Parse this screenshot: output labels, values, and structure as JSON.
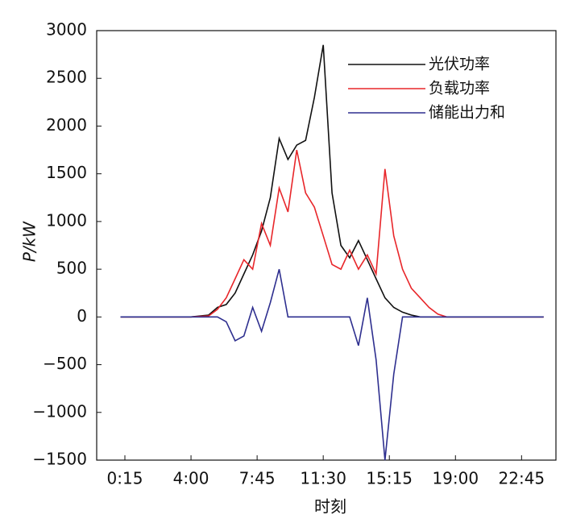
{
  "chart_data": {
    "type": "line",
    "x_label": "时刻",
    "y_label": "P/kW",
    "x": [
      0,
      1,
      2,
      3,
      4,
      5,
      5.5,
      6,
      6.5,
      7,
      7.5,
      8,
      8.5,
      9,
      9.5,
      10,
      10.5,
      11,
      11.5,
      12,
      12.5,
      13,
      13.5,
      14,
      14.5,
      15,
      15.5,
      16,
      16.5,
      17,
      17.5,
      18,
      18.5,
      19,
      20,
      21,
      22,
      23,
      24
    ],
    "series": [
      {
        "name": "光伏功率",
        "color": "#111111",
        "values": [
          0,
          0,
          0,
          0,
          0,
          20,
          100,
          130,
          250,
          450,
          650,
          900,
          1250,
          1870,
          1650,
          1800,
          1850,
          2300,
          2850,
          1300,
          750,
          620,
          800,
          600,
          400,
          200,
          100,
          50,
          20,
          0,
          0,
          0,
          0,
          0,
          0,
          0,
          0,
          0,
          0
        ]
      },
      {
        "name": "负载功率",
        "color": "#e8262a",
        "values": [
          0,
          0,
          0,
          0,
          0,
          10,
          80,
          200,
          400,
          600,
          500,
          980,
          750,
          1350,
          1100,
          1750,
          1300,
          1150,
          850,
          550,
          500,
          700,
          500,
          650,
          450,
          1550,
          850,
          500,
          300,
          200,
          100,
          30,
          0,
          0,
          0,
          0,
          0,
          0,
          0
        ]
      },
      {
        "name": "储能出力和",
        "color": "#2e2f8f",
        "values": [
          0,
          0,
          0,
          0,
          0,
          0,
          0,
          -50,
          -250,
          -200,
          100,
          -150,
          150,
          500,
          0,
          0,
          0,
          0,
          0,
          0,
          0,
          0,
          -300,
          200,
          -450,
          -1500,
          -600,
          0,
          0,
          0,
          0,
          0,
          0,
          0,
          0,
          0,
          0,
          0,
          0
        ]
      }
    ],
    "xlim": [
      -1.35,
      24.7
    ],
    "xticks": [
      {
        "value": 0.25,
        "label": "0:15"
      },
      {
        "value": 4,
        "label": "4:00"
      },
      {
        "value": 7.75,
        "label": "7:45"
      },
      {
        "value": 11.5,
        "label": "11:30"
      },
      {
        "value": 15.25,
        "label": "15:15"
      },
      {
        "value": 19,
        "label": "19:00"
      },
      {
        "value": 22.75,
        "label": "22:45"
      }
    ],
    "ylim": [
      -1500,
      3000
    ],
    "yticks": [
      {
        "value": -1500,
        "label": "−1500"
      },
      {
        "value": -1000,
        "label": "−1000"
      },
      {
        "value": -500,
        "label": "−500"
      },
      0,
      500,
      1000,
      1500,
      2000,
      2500,
      3000
    ],
    "legend": "upper right"
  }
}
